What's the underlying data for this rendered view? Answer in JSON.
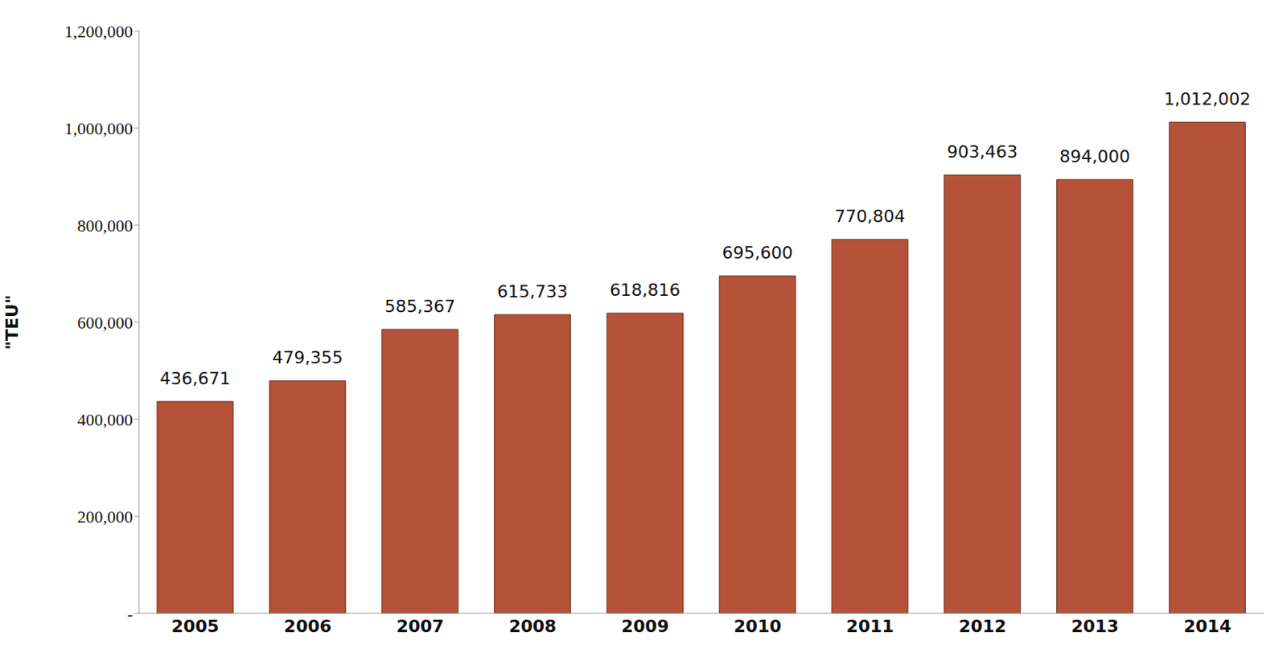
{
  "chart_data": {
    "type": "bar",
    "y_label": "\"TEU\"",
    "categories": [
      "2005",
      "2006",
      "2007",
      "2008",
      "2009",
      "2010",
      "2011",
      "2012",
      "2013",
      "2014"
    ],
    "values": [
      436671,
      479355,
      585367,
      615733,
      618816,
      695600,
      770804,
      903463,
      894000,
      1012002
    ],
    "value_labels": [
      "436,671",
      "479,355",
      "585,367",
      "615,733",
      "618,816",
      "695,600",
      "770,804",
      "903,463",
      "894,000",
      "1,012,002"
    ],
    "color": "#b4533a",
    "ylim": [
      0,
      1200000
    ],
    "yticks": [
      {
        "value": 0,
        "label": "-"
      },
      {
        "value": 200000,
        "label": "200,000"
      },
      {
        "value": 400000,
        "label": "400,000"
      },
      {
        "value": 600000,
        "label": "600,000"
      },
      {
        "value": 800000,
        "label": "800,000"
      },
      {
        "value": 1000000,
        "label": "1,000,000"
      },
      {
        "value": 1200000,
        "label": "1,200,000"
      }
    ],
    "grid": false,
    "data_labels": true
  }
}
